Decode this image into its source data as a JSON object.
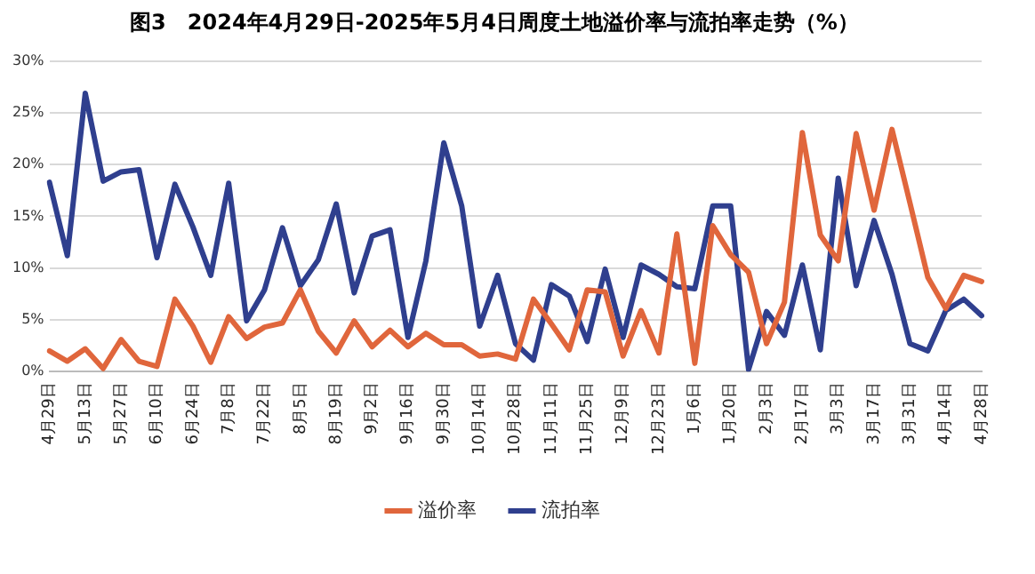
{
  "chart_data": {
    "type": "line",
    "title": "图3　2024年4月29日-2025年5月4日周度土地溢价率与流拍率走势（%）",
    "categories": [
      "4月29日",
      null,
      "5月13日",
      null,
      "5月27日",
      null,
      "6月10日",
      null,
      "6月24日",
      null,
      "7月8日",
      null,
      "7月22日",
      null,
      "8月5日",
      null,
      "8月19日",
      null,
      "9月2日",
      null,
      "9月16日",
      null,
      "9月30日",
      null,
      "10月14日",
      null,
      "10月28日",
      null,
      "11月11日",
      null,
      "11月25日",
      null,
      "12月9日",
      null,
      "12月23日",
      null,
      "1月6日",
      null,
      "1月20日",
      null,
      "2月3日",
      null,
      "2月17日",
      null,
      "3月3日",
      null,
      "3月17日",
      null,
      "3月31日",
      null,
      "4月14日",
      null,
      "4月28日"
    ],
    "series": [
      {
        "name": "溢价率",
        "color": "#e0663c",
        "values": [
          2.0,
          1.0,
          2.2,
          0.3,
          3.1,
          1.0,
          0.5,
          7.0,
          4.4,
          0.9,
          5.3,
          3.2,
          4.3,
          4.7,
          7.9,
          3.9,
          1.8,
          4.9,
          2.4,
          4.0,
          2.4,
          3.7,
          2.6,
          2.6,
          1.5,
          1.7,
          1.2,
          7.0,
          4.6,
          2.1,
          7.9,
          7.7,
          1.5,
          5.9,
          1.8,
          13.3,
          0.8,
          14.1,
          11.3,
          9.6,
          2.7,
          6.7,
          23.1,
          13.2,
          10.7,
          23.0,
          15.6,
          23.4,
          16.3,
          9.1,
          6.1,
          9.3,
          8.7
        ]
      },
      {
        "name": "流拍率",
        "color": "#2f3f8e",
        "values": [
          18.3,
          11.2,
          26.9,
          18.4,
          19.3,
          19.5,
          11.0,
          18.1,
          14.0,
          9.3,
          18.2,
          4.9,
          7.9,
          13.9,
          8.3,
          10.8,
          16.2,
          7.6,
          13.1,
          13.7,
          3.3,
          10.7,
          22.1,
          16.0,
          4.4,
          9.3,
          2.7,
          1.1,
          8.4,
          7.3,
          2.9,
          9.9,
          3.3,
          10.3,
          9.4,
          8.2,
          8.0,
          16.0,
          16.0,
          0.2,
          5.8,
          3.5,
          10.3,
          2.1,
          18.7,
          8.3,
          14.6,
          9.4,
          2.7,
          2.0,
          5.9,
          7.0,
          5.4
        ]
      }
    ],
    "ylim": [
      0,
      30
    ],
    "yticks": [
      {
        "value": 0,
        "label": "0%"
      },
      {
        "value": 5,
        "label": "5%"
      },
      {
        "value": 10,
        "label": "10%"
      },
      {
        "value": 15,
        "label": "15%"
      },
      {
        "value": 20,
        "label": "20%"
      },
      {
        "value": 25,
        "label": "25%"
      },
      {
        "value": 30,
        "label": "30%"
      }
    ],
    "grid": "y",
    "legend": "bottom",
    "marker": "none",
    "line_style": "solid"
  }
}
